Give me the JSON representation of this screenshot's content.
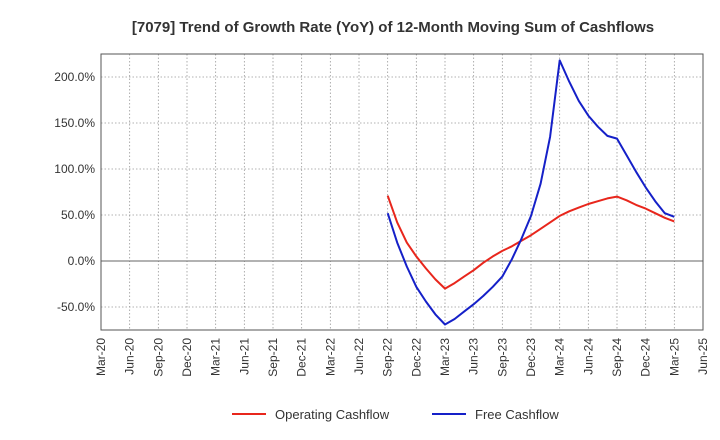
{
  "chart_data": {
    "type": "line",
    "title": "[7079]  Trend of Growth Rate (YoY) of 12-Month Moving Sum of Cashflows",
    "xlabel": "",
    "ylabel": "",
    "x_tick_labels": [
      "Mar-20",
      "Jun-20",
      "Sep-20",
      "Dec-20",
      "Mar-21",
      "Jun-21",
      "Sep-21",
      "Dec-21",
      "Mar-22",
      "Jun-22",
      "Sep-22",
      "Dec-22",
      "Mar-23",
      "Jun-23",
      "Sep-23",
      "Dec-23",
      "Mar-24",
      "Jun-24",
      "Sep-24",
      "Dec-24",
      "Mar-25",
      "Jun-25"
    ],
    "y_tick_labels": [
      "-50.0%",
      "0.0%",
      "50.0%",
      "100.0%",
      "150.0%",
      "200.0%"
    ],
    "y_ticks": [
      -50,
      0,
      50,
      100,
      150,
      200
    ],
    "ylim": [
      -75,
      225
    ],
    "grid": true,
    "legend_position": "bottom",
    "x": [
      "Sep-22",
      "Oct-22",
      "Nov-22",
      "Dec-22",
      "Jan-23",
      "Feb-23",
      "Mar-23",
      "Apr-23",
      "May-23",
      "Jun-23",
      "Jul-23",
      "Aug-23",
      "Sep-23",
      "Oct-23",
      "Nov-23",
      "Dec-23",
      "Jan-24",
      "Feb-24",
      "Mar-24",
      "Apr-24",
      "May-24",
      "Jun-24",
      "Jul-24",
      "Aug-24",
      "Sep-24",
      "Oct-24",
      "Nov-24",
      "Dec-24",
      "Jan-25",
      "Feb-25",
      "Mar-25"
    ],
    "series": [
      {
        "name": "Operating Cashflow",
        "color": "#e8261c",
        "values": [
          71,
          42,
          20,
          5,
          -8,
          -20,
          -30,
          -24,
          -17,
          -10,
          -2,
          5,
          11,
          16,
          22,
          28,
          35,
          42,
          49,
          54,
          58,
          62,
          65,
          68,
          70,
          66,
          61,
          57,
          52,
          47,
          43
        ]
      },
      {
        "name": "Free Cashflow",
        "color": "#1520c8",
        "values": [
          52,
          20,
          -6,
          -28,
          -44,
          -58,
          -69,
          -63,
          -55,
          -47,
          -38,
          -28,
          -17,
          2,
          24,
          49,
          84,
          135,
          218,
          195,
          174,
          158,
          146,
          136,
          133,
          115,
          97,
          80,
          65,
          52,
          48
        ]
      }
    ]
  }
}
